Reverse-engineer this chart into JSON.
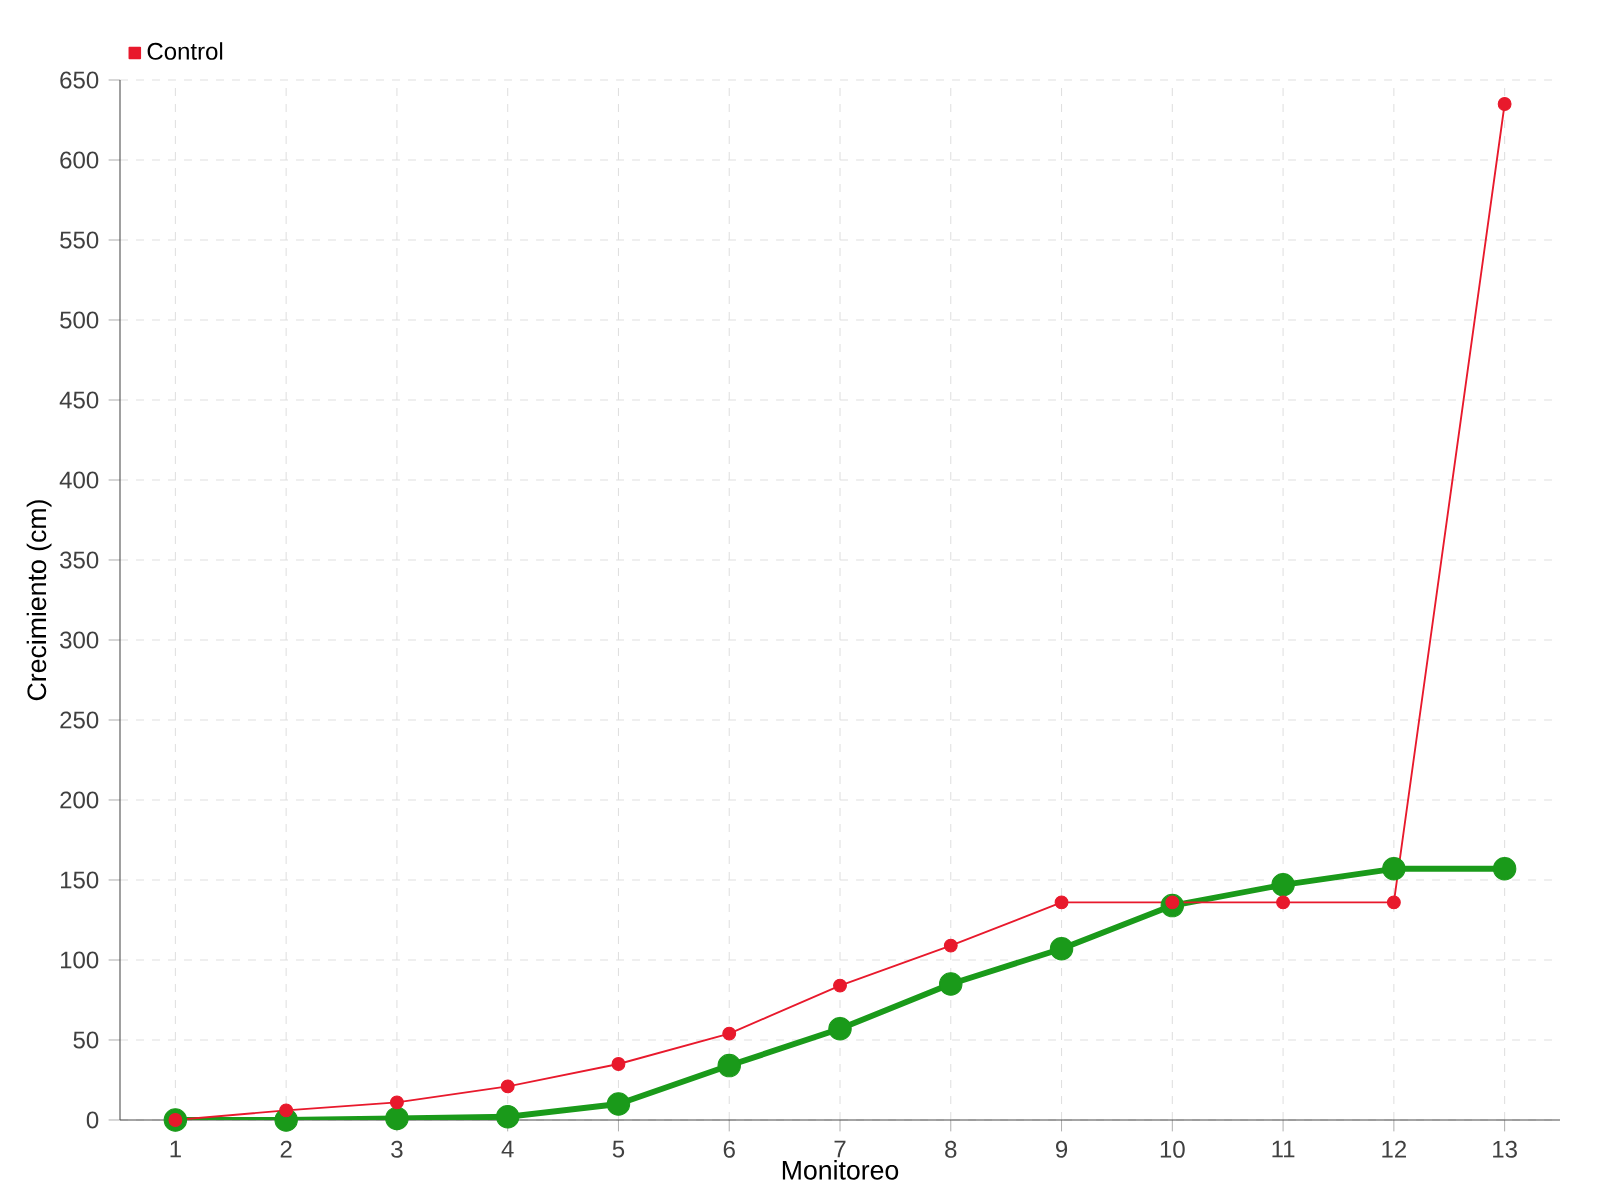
{
  "chart_data": {
    "type": "line",
    "xlabel": "Monitoreo",
    "ylabel": "Crecimiento (cm)",
    "categories": [
      "1",
      "2",
      "3",
      "4",
      "5",
      "6",
      "7",
      "8",
      "9",
      "10",
      "11",
      "12",
      "13"
    ],
    "series": [
      {
        "color": "#1a9a1a",
        "values": [
          0,
          0,
          1,
          2,
          10,
          34,
          57,
          85,
          107,
          134,
          147,
          157,
          157
        ]
      },
      {
        "name": "Control",
        "color": "#e8192c",
        "values": [
          0,
          6,
          11,
          21,
          35,
          54,
          84,
          109,
          136,
          136,
          136,
          136,
          635
        ]
      }
    ],
    "ylim": [
      0,
      650
    ],
    "yticks": [
      0,
      50,
      100,
      150,
      200,
      250,
      300,
      350,
      400,
      450,
      500,
      550,
      600,
      650
    ],
    "grid": true,
    "legend": "top left",
    "marker": "circle",
    "line_style": "solid"
  }
}
